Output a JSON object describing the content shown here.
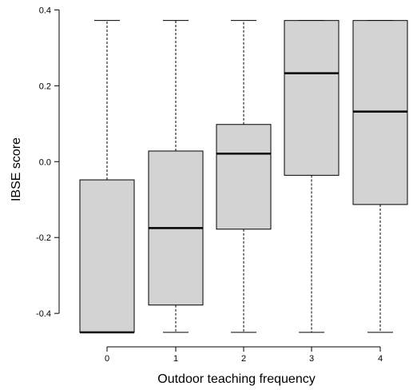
{
  "chart_data": {
    "type": "box",
    "title": "",
    "xlabel": "Outdoor teaching frequency",
    "ylabel": "IBSE score",
    "categories": [
      "0",
      "1",
      "2",
      "3",
      "4"
    ],
    "ylim": [
      -0.465,
      0.405
    ],
    "y_ticks": [
      -0.4,
      -0.2,
      0.0,
      0.2,
      0.4
    ],
    "y_tick_labels": [
      "-0.4",
      "-0.2",
      "0.0",
      "0.2",
      "0.4"
    ],
    "grid": false,
    "legend": "none",
    "box_fill": "#d3d3d3",
    "boxes": [
      {
        "category": "0",
        "min": -0.45,
        "q1": -0.45,
        "median": -0.45,
        "q3": -0.048,
        "max": 0.372
      },
      {
        "category": "1",
        "min": -0.45,
        "q1": -0.378,
        "median": -0.175,
        "q3": 0.028,
        "max": 0.372
      },
      {
        "category": "2",
        "min": -0.45,
        "q1": -0.178,
        "median": 0.021,
        "q3": 0.098,
        "max": 0.372
      },
      {
        "category": "3",
        "min": -0.45,
        "q1": -0.036,
        "median": 0.233,
        "q3": 0.372,
        "max": 0.372
      },
      {
        "category": "4",
        "min": -0.45,
        "q1": -0.113,
        "median": 0.132,
        "q3": 0.372,
        "max": 0.372
      }
    ]
  }
}
